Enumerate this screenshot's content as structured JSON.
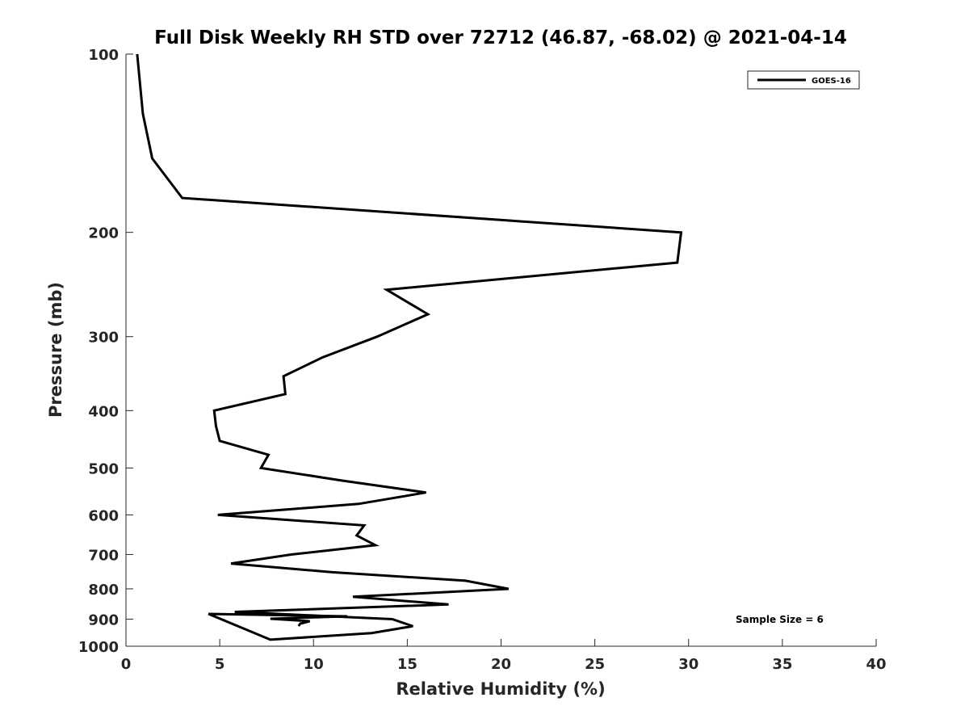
{
  "chart_data": {
    "type": "line",
    "title": "Full Disk Weekly RH STD over 72712 (46.87, -68.02) @ 2021-04-14",
    "xlabel": "Relative Humidity (%)",
    "ylabel": "Pressure (mb)",
    "xlim": [
      0,
      40
    ],
    "ylim": [
      100,
      1000
    ],
    "y_scale": "log",
    "y_reversed": true,
    "grid": false,
    "legend_position": "top-right",
    "x_ticks": [
      0,
      5,
      10,
      15,
      20,
      25,
      30,
      35,
      40
    ],
    "y_ticks": [
      100,
      200,
      300,
      400,
      500,
      600,
      700,
      800,
      900,
      1000
    ],
    "annotation": "Sample Size = 6",
    "series": [
      {
        "name": "GOES-16",
        "color": "#000000",
        "x": [
          0.6,
          0.9,
          1.4,
          3.0,
          29.6,
          29.4,
          13.9,
          16.1,
          13.4,
          10.5,
          8.4,
          8.5,
          4.7,
          4.8,
          5.0,
          7.6,
          7.2,
          11.5,
          16.0,
          12.4,
          4.9,
          12.7,
          12.3,
          13.3,
          8.8,
          5.6,
          11.0,
          18.1,
          20.4,
          12.1,
          17.2,
          5.8,
          14.2,
          15.3,
          13.1,
          7.7,
          4.4,
          11.8,
          7.7,
          9.8,
          9.3,
          9.2
        ],
        "y": [
          100,
          126,
          150,
          175,
          200,
          225,
          250,
          275,
          300,
          325,
          350,
          375,
          400,
          425,
          450,
          475,
          500,
          525,
          550,
          575,
          600,
          625,
          650,
          675,
          700,
          725,
          750,
          775,
          800,
          825,
          850,
          875,
          900,
          925,
          950,
          975,
          1000,
          1000,
          1000,
          1000,
          1000,
          1000
        ]
      }
    ]
  }
}
